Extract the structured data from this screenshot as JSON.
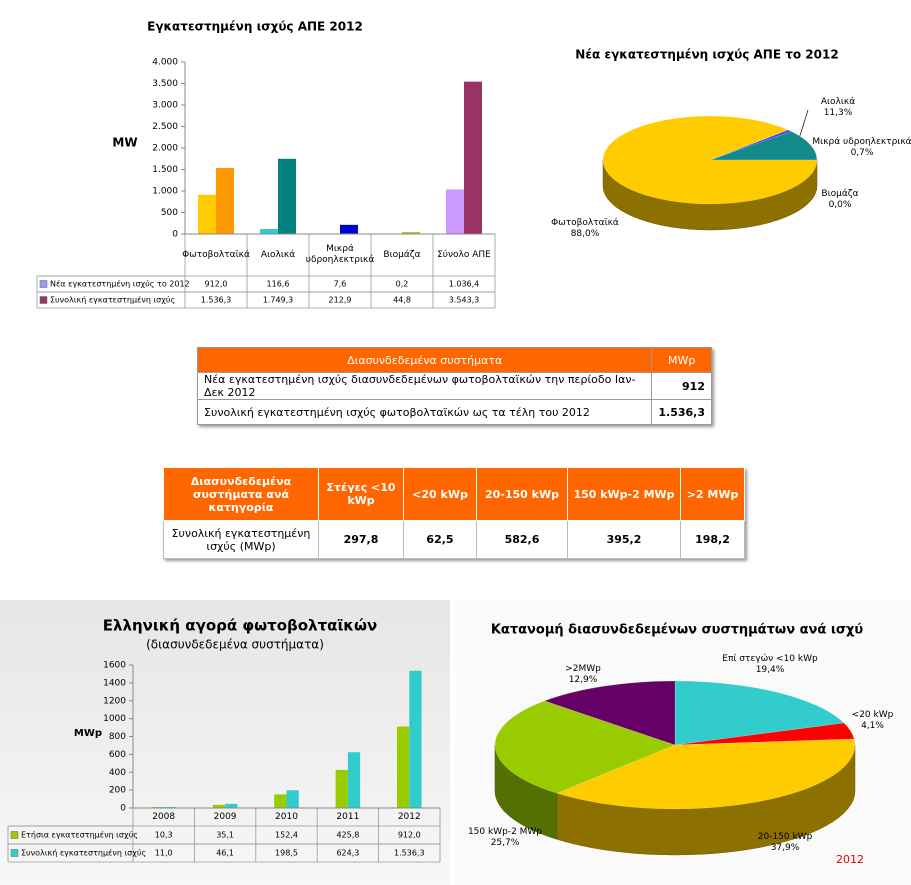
{
  "chart_data": [
    {
      "type": "bar",
      "title": "Εγκατεστημένη ισχύς ΑΠΕ 2012",
      "y_label": "MW",
      "categories": [
        "Φωτοβολταϊκά",
        "Αιολικά",
        "Μικρά υδροηλεκτρικά",
        "Βιομάζα",
        "Σύνολο ΑΠΕ"
      ],
      "series": [
        {
          "name": "Νέα εγκατεστημένη ισχύς το 2012",
          "color": "#9999ff",
          "colors": [
            "#ffcc00",
            "#33cccc",
            "#3333ff",
            "#b5d96a",
            "#cc99ff"
          ],
          "values": [
            912.0,
            116.6,
            7.6,
            0.2,
            1036.4
          ],
          "value_labels": [
            "912,0",
            "116,6",
            "7,6",
            "0,2",
            "1.036,4"
          ]
        },
        {
          "name": "Συνολική εγκατεστημένη ισχύς",
          "color": "#993366",
          "colors": [
            "#ff9900",
            "#008080",
            "#0000cc",
            "#99cc33",
            "#993366"
          ],
          "values": [
            1536.3,
            1749.3,
            212.9,
            44.8,
            3543.3
          ],
          "value_labels": [
            "1.536,3",
            "1.749,3",
            "212,9",
            "44,8",
            "3.543,3"
          ]
        }
      ],
      "ylim": [
        0,
        4000
      ],
      "yticks": [
        0,
        {
          "value": 500,
          "label": "500"
        },
        {
          "value": 1000,
          "label": "1.000"
        },
        {
          "value": 1500,
          "label": "1.500"
        },
        {
          "value": 2000,
          "label": "2.000"
        },
        {
          "value": 2500,
          "label": "2.500"
        },
        {
          "value": 3000,
          "label": "3.000"
        },
        {
          "value": 3500,
          "label": "3.500"
        },
        {
          "value": 4000,
          "label": "4.000"
        }
      ],
      "grid": false
    },
    {
      "type": "pie",
      "title": "Νέα εγκατεστημένη ισχύς ΑΠΕ το 2012",
      "categories": [
        "Αιολικά",
        "Μικρά υδροηλεκτρικά",
        "Βιομάζα",
        "Φωτοβολταϊκά"
      ],
      "values": [
        11.3,
        0.7,
        0.0,
        88.0
      ],
      "value_labels": [
        "11,3%",
        "0,7%",
        "0,0%",
        "88,0%"
      ],
      "colors": [
        "#138a8a",
        "#3a3aff",
        "#66cc33",
        "#ffcc00"
      ]
    },
    {
      "type": "bar",
      "title": "Ελληνική αγορά φωτοβολταϊκών",
      "subtitle": "(διασυνδεδεμένα συστήματα)",
      "y_label": "MWp",
      "categories": [
        "2008",
        "2009",
        "2010",
        "2011",
        "2012"
      ],
      "series": [
        {
          "name": "Ετήσια εγκατεστημένη ισχύς",
          "color": "#99cc00",
          "values": [
            10.3,
            35.1,
            152.4,
            425.8,
            912.0
          ],
          "value_labels": [
            "10,3",
            "35,1",
            "152,4",
            "425,8",
            "912,0"
          ]
        },
        {
          "name": "Συνολική εγκατεστημένη ισχύς",
          "color": "#33cccc",
          "values": [
            11.0,
            46.1,
            198.5,
            624.3,
            1536.3
          ],
          "value_labels": [
            "11,0",
            "46,1",
            "198,5",
            "624,3",
            "1.536,3"
          ]
        }
      ],
      "ylim": [
        0,
        1600
      ],
      "yticks": [
        0,
        200,
        400,
        600,
        800,
        1000,
        1200,
        1400,
        1600
      ],
      "grid": false
    },
    {
      "type": "pie",
      "title": "Κατανομή διασυνδεδεμένων συστημάτων ανά ισχύ",
      "annotation": "2012",
      "categories": [
        "Επί στεγών <10 kWp",
        "<20 kWp",
        "20-150 kWp",
        "150 kWp-2 MWp",
        ">2MWp"
      ],
      "values": [
        19.4,
        4.1,
        37.9,
        25.7,
        12.9
      ],
      "value_labels": [
        "19,4%",
        "4,1%",
        "37,9%",
        "25,7%",
        "12,9%"
      ],
      "colors": [
        "#33cccc",
        "#ff0000",
        "#ffcc00",
        "#99cc00",
        "#660066"
      ]
    }
  ],
  "tables": [
    {
      "header": [
        "Διασυνδεδεμένα συστήματα",
        "MWp"
      ],
      "rows": [
        [
          "Νέα εγκατεστημένη ισχύς διασυνδεδεμένων φωτοβολταϊκών την περίοδο Ιαν-Δεκ 2012",
          "912"
        ],
        [
          "Συνολική εγκατεστημένη ισχύς φωτοβολταϊκών ως τα τέλη του 2012",
          "1.536,3"
        ]
      ]
    },
    {
      "header": [
        "Διασυνδεδεμένα συστήματα ανά κατηγορία",
        "Στέγες <10 kWp",
        "<20 kWp",
        "20-150 kWp",
        "150 kWp-2 MWp",
        ">2 MWp"
      ],
      "rows": [
        [
          "Συνολική εγκατεστημένη ισχύς (MWp)",
          "297,8",
          "62,5",
          "582,6",
          "395,2",
          "198,2"
        ]
      ]
    }
  ]
}
